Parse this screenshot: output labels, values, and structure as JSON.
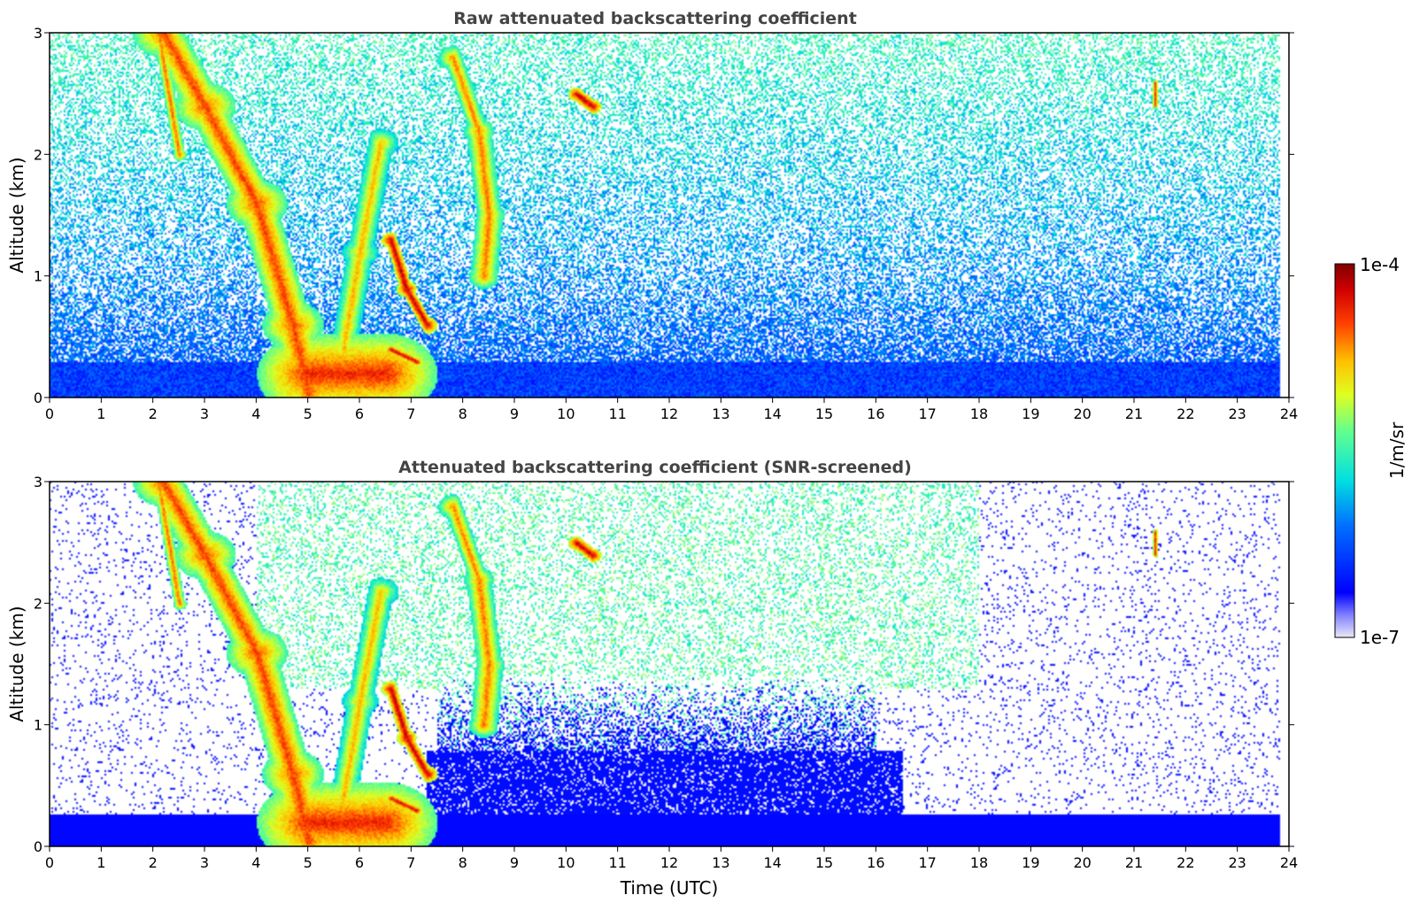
{
  "chart_data": [
    {
      "type": "heatmap",
      "title": "Raw attenuated backscattering coefficient",
      "xlabel": "",
      "ylabel": "Altitude (km)",
      "xlim": [
        0,
        24
      ],
      "ylim": [
        0,
        3
      ],
      "x_ticks": [
        "0",
        "1",
        "2",
        "3",
        "4",
        "5",
        "6",
        "7",
        "8",
        "9",
        "10",
        "11",
        "12",
        "13",
        "14",
        "15",
        "16",
        "17",
        "18",
        "19",
        "20",
        "21",
        "22",
        "23",
        "24"
      ],
      "y_ticks": [
        "0",
        "1",
        "2",
        "3"
      ],
      "screened": false,
      "features": [
        {
          "name": "descending precipitation band",
          "points": [
            [
              2.2,
              3.0
            ],
            [
              3.0,
              2.4
            ],
            [
              4.0,
              1.6
            ],
            [
              4.7,
              0.6
            ],
            [
              5.0,
              0.05
            ]
          ],
          "width_h": 0.6,
          "intensity": 0.85
        },
        {
          "name": "inner fall streak",
          "points": [
            [
              2.1,
              3.0
            ],
            [
              2.5,
              2.0
            ]
          ],
          "width_h": 0.15,
          "intensity": 0.82
        },
        {
          "name": "surface precipitation",
          "points": [
            [
              5.0,
              0.2
            ],
            [
              5.8,
              0.2
            ],
            [
              6.5,
              0.2
            ]
          ],
          "width_h": 1.0,
          "intensity": 0.88
        },
        {
          "name": "rising band",
          "points": [
            [
              5.6,
              0.2
            ],
            [
              6.0,
              1.2
            ],
            [
              6.4,
              2.1
            ]
          ],
          "width_h": 0.35,
          "intensity": 0.75
        },
        {
          "name": "cloud at 6.8h",
          "points": [
            [
              6.6,
              1.3
            ],
            [
              6.9,
              0.9
            ],
            [
              7.3,
              0.6
            ]
          ],
          "width_h": 0.2,
          "intensity": 0.95
        },
        {
          "name": "low cloud at 7h",
          "points": [
            [
              6.6,
              0.4
            ],
            [
              7.1,
              0.3
            ]
          ],
          "width_h": 0.1,
          "intensity": 0.95
        },
        {
          "name": "mid-level cloud at 8h",
          "points": [
            [
              7.8,
              2.8
            ],
            [
              8.3,
              2.2
            ],
            [
              8.5,
              1.5
            ],
            [
              8.4,
              1.0
            ]
          ],
          "width_h": 0.3,
          "intensity": 0.8
        },
        {
          "name": "cloud at 10.4h",
          "points": [
            [
              10.2,
              2.5
            ],
            [
              10.5,
              2.4
            ]
          ],
          "width_h": 0.18,
          "intensity": 0.95
        },
        {
          "name": "cloud at 21.4h",
          "points": [
            [
              21.4,
              2.6
            ],
            [
              21.4,
              2.4
            ]
          ],
          "width_h": 0.05,
          "intensity": 0.9
        }
      ]
    },
    {
      "type": "heatmap",
      "title": "Attenuated backscattering coefficient (SNR-screened)",
      "xlabel": "Time (UTC)",
      "ylabel": "Altitude (km)",
      "xlim": [
        0,
        24
      ],
      "ylim": [
        0,
        3
      ],
      "x_ticks": [
        "0",
        "1",
        "2",
        "3",
        "4",
        "5",
        "6",
        "7",
        "8",
        "9",
        "10",
        "11",
        "12",
        "13",
        "14",
        "15",
        "16",
        "17",
        "18",
        "19",
        "20",
        "21",
        "22",
        "23",
        "24"
      ],
      "y_ticks": [
        "0",
        "1",
        "2",
        "3"
      ],
      "screened": true,
      "features": "same as raw panel, with low-SNR pixels removed"
    }
  ],
  "colorbar": {
    "min_label": "1e-7",
    "max_label": "1e-4",
    "label": "1/m/sr",
    "colormap": "jet"
  }
}
